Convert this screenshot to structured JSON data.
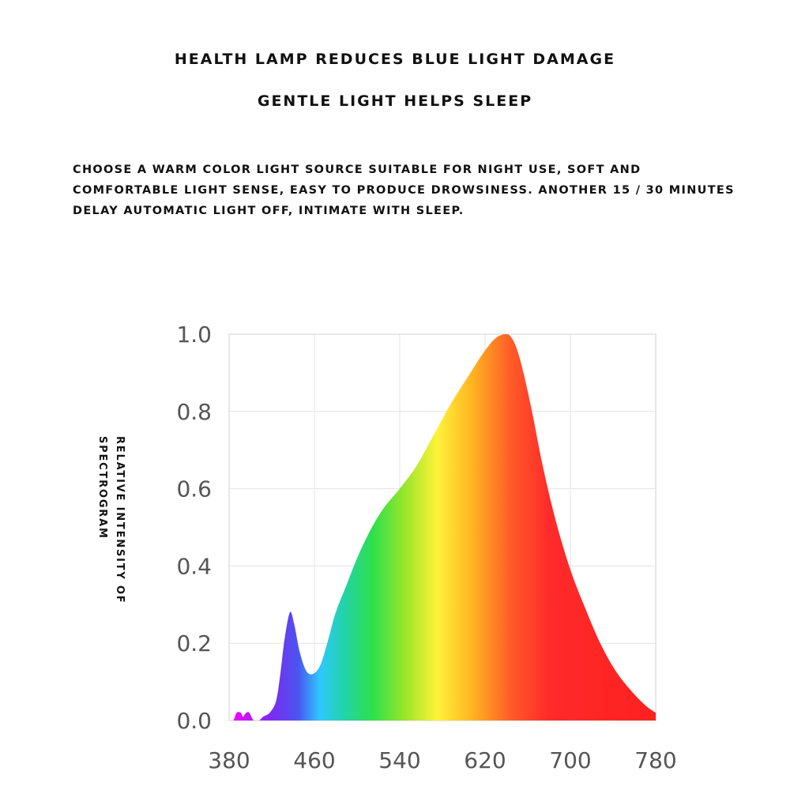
{
  "headings": {
    "line1": "HEALTH LAMP REDUCES BLUE LIGHT DAMAGE",
    "line2": "GENTLE LIGHT HELPS SLEEP"
  },
  "description": {
    "line1": "CHOOSE A WARM COLOR LIGHT SOURCE SUITABLE FOR NIGHT USE, SOFT AND",
    "line2": "COMFORTABLE LIGHT SENSE, EASY TO PRODUCE DROWSINESS. ANOTHER 15 / 30 MINUTES",
    "line3": "DELAY AUTOMATIC LIGHT OFF, INTIMATE WITH SLEEP."
  },
  "chart_data": {
    "type": "area",
    "title": "",
    "ylabel_lines": [
      "RELATIVE INTENSITY OF",
      "SPECTROGRAM"
    ],
    "xlabel": "",
    "xlim": [
      380,
      780
    ],
    "ylim": [
      0,
      1.0
    ],
    "x_ticks": [
      "380",
      "460",
      "540",
      "620",
      "700",
      "780"
    ],
    "y_ticks": [
      "0.0",
      "0.2",
      "0.4",
      "0.6",
      "0.8",
      "1.0"
    ],
    "grid": true,
    "series": [
      {
        "x": [
          380,
          384,
          387,
          391,
          393,
          396,
          399,
          403,
          408,
          412,
          418,
          424,
          428,
          432,
          437,
          441,
          446,
          452,
          458,
          465,
          472,
          480,
          490,
          500,
          512,
          525,
          540,
          556,
          572,
          588,
          604,
          618,
          630,
          640,
          645,
          650,
          656,
          664,
          674,
          686,
          700,
          714,
          728,
          742,
          756,
          770,
          780
        ],
        "y": [
          0.0,
          0.0,
          0.02,
          0.02,
          0.01,
          0.02,
          0.02,
          0.0,
          0.0,
          0.01,
          0.02,
          0.05,
          0.12,
          0.21,
          0.28,
          0.25,
          0.18,
          0.13,
          0.12,
          0.14,
          0.2,
          0.28,
          0.35,
          0.42,
          0.49,
          0.55,
          0.6,
          0.66,
          0.74,
          0.82,
          0.89,
          0.95,
          0.99,
          1.0,
          0.99,
          0.96,
          0.9,
          0.8,
          0.66,
          0.52,
          0.39,
          0.29,
          0.2,
          0.13,
          0.08,
          0.04,
          0.02
        ]
      }
    ],
    "fill_gradient": [
      {
        "nm": 380,
        "color": "#ff00ff"
      },
      {
        "nm": 420,
        "color": "#7a2cf0"
      },
      {
        "nm": 445,
        "color": "#4a55f0"
      },
      {
        "nm": 465,
        "color": "#2ec8ff"
      },
      {
        "nm": 490,
        "color": "#22d4a0"
      },
      {
        "nm": 515,
        "color": "#2ee04a"
      },
      {
        "nm": 545,
        "color": "#9ae62a"
      },
      {
        "nm": 575,
        "color": "#fff23a"
      },
      {
        "nm": 610,
        "color": "#ffb020"
      },
      {
        "nm": 645,
        "color": "#ff5a28"
      },
      {
        "nm": 680,
        "color": "#ff2a2a"
      },
      {
        "nm": 780,
        "color": "#ff2020"
      }
    ]
  }
}
